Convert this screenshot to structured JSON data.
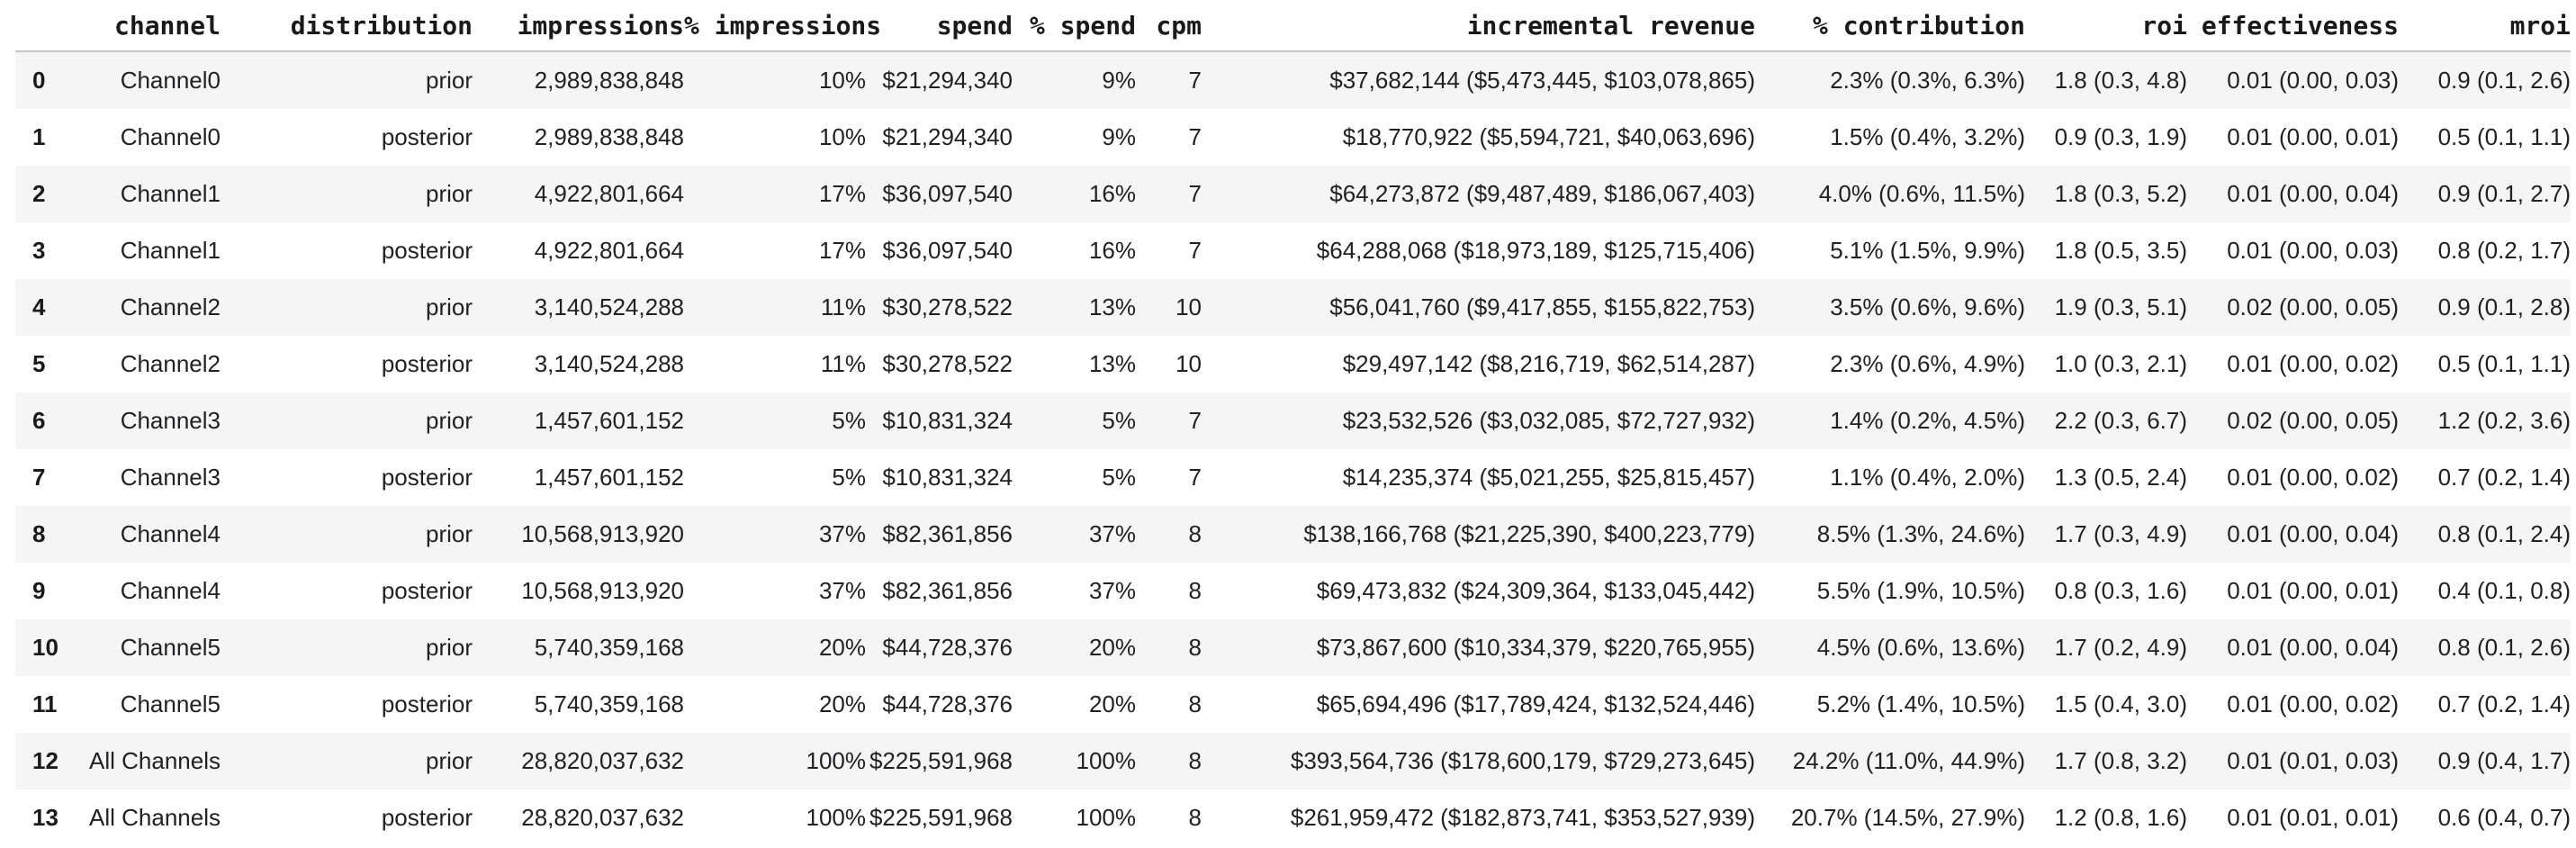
{
  "colors": {
    "stripe_row_bg": "#f5f5f5",
    "plain_row_bg": "#ffffff",
    "header_rule": "#c6c6c6",
    "header_text": "#1a1a1a",
    "body_text": "#202124"
  },
  "chart_data": {
    "type": "table",
    "title": "",
    "layout": {
      "striped": true,
      "stripe_rows": "even indices (0,2,4,...)",
      "alignment": "right",
      "index_alignment": "left",
      "gridlines": "header underline only"
    },
    "columns": [
      "",
      "channel",
      "distribution",
      "impressions",
      "% impressions",
      "spend",
      "% spend",
      "cpm",
      "incremental revenue",
      "% contribution",
      "roi",
      "effectiveness",
      "mroi"
    ],
    "rows": [
      [
        "0",
        "Channel0",
        "prior",
        "2,989,838,848",
        "10%",
        "$21,294,340",
        "9%",
        "7",
        "$37,682,144 ($5,473,445, $103,078,865)",
        "2.3% (0.3%, 6.3%)",
        "1.8 (0.3, 4.8)",
        "0.01 (0.00, 0.03)",
        "0.9 (0.1, 2.6)"
      ],
      [
        "1",
        "Channel0",
        "posterior",
        "2,989,838,848",
        "10%",
        "$21,294,340",
        "9%",
        "7",
        "$18,770,922 ($5,594,721, $40,063,696)",
        "1.5% (0.4%, 3.2%)",
        "0.9 (0.3, 1.9)",
        "0.01 (0.00, 0.01)",
        "0.5 (0.1, 1.1)"
      ],
      [
        "2",
        "Channel1",
        "prior",
        "4,922,801,664",
        "17%",
        "$36,097,540",
        "16%",
        "7",
        "$64,273,872 ($9,487,489, $186,067,403)",
        "4.0% (0.6%, 11.5%)",
        "1.8 (0.3, 5.2)",
        "0.01 (0.00, 0.04)",
        "0.9 (0.1, 2.7)"
      ],
      [
        "3",
        "Channel1",
        "posterior",
        "4,922,801,664",
        "17%",
        "$36,097,540",
        "16%",
        "7",
        "$64,288,068 ($18,973,189, $125,715,406)",
        "5.1% (1.5%, 9.9%)",
        "1.8 (0.5, 3.5)",
        "0.01 (0.00, 0.03)",
        "0.8 (0.2, 1.7)"
      ],
      [
        "4",
        "Channel2",
        "prior",
        "3,140,524,288",
        "11%",
        "$30,278,522",
        "13%",
        "10",
        "$56,041,760 ($9,417,855, $155,822,753)",
        "3.5% (0.6%, 9.6%)",
        "1.9 (0.3, 5.1)",
        "0.02 (0.00, 0.05)",
        "0.9 (0.1, 2.8)"
      ],
      [
        "5",
        "Channel2",
        "posterior",
        "3,140,524,288",
        "11%",
        "$30,278,522",
        "13%",
        "10",
        "$29,497,142 ($8,216,719, $62,514,287)",
        "2.3% (0.6%, 4.9%)",
        "1.0 (0.3, 2.1)",
        "0.01 (0.00, 0.02)",
        "0.5 (0.1, 1.1)"
      ],
      [
        "6",
        "Channel3",
        "prior",
        "1,457,601,152",
        "5%",
        "$10,831,324",
        "5%",
        "7",
        "$23,532,526 ($3,032,085, $72,727,932)",
        "1.4% (0.2%, 4.5%)",
        "2.2 (0.3, 6.7)",
        "0.02 (0.00, 0.05)",
        "1.2 (0.2, 3.6)"
      ],
      [
        "7",
        "Channel3",
        "posterior",
        "1,457,601,152",
        "5%",
        "$10,831,324",
        "5%",
        "7",
        "$14,235,374 ($5,021,255, $25,815,457)",
        "1.1% (0.4%, 2.0%)",
        "1.3 (0.5, 2.4)",
        "0.01 (0.00, 0.02)",
        "0.7 (0.2, 1.4)"
      ],
      [
        "8",
        "Channel4",
        "prior",
        "10,568,913,920",
        "37%",
        "$82,361,856",
        "37%",
        "8",
        "$138,166,768 ($21,225,390, $400,223,779)",
        "8.5% (1.3%, 24.6%)",
        "1.7 (0.3, 4.9)",
        "0.01 (0.00, 0.04)",
        "0.8 (0.1, 2.4)"
      ],
      [
        "9",
        "Channel4",
        "posterior",
        "10,568,913,920",
        "37%",
        "$82,361,856",
        "37%",
        "8",
        "$69,473,832 ($24,309,364, $133,045,442)",
        "5.5% (1.9%, 10.5%)",
        "0.8 (0.3, 1.6)",
        "0.01 (0.00, 0.01)",
        "0.4 (0.1, 0.8)"
      ],
      [
        "10",
        "Channel5",
        "prior",
        "5,740,359,168",
        "20%",
        "$44,728,376",
        "20%",
        "8",
        "$73,867,600 ($10,334,379, $220,765,955)",
        "4.5% (0.6%, 13.6%)",
        "1.7 (0.2, 4.9)",
        "0.01 (0.00, 0.04)",
        "0.8 (0.1, 2.6)"
      ],
      [
        "11",
        "Channel5",
        "posterior",
        "5,740,359,168",
        "20%",
        "$44,728,376",
        "20%",
        "8",
        "$65,694,496 ($17,789,424, $132,524,446)",
        "5.2% (1.4%, 10.5%)",
        "1.5 (0.4, 3.0)",
        "0.01 (0.00, 0.02)",
        "0.7 (0.2, 1.4)"
      ],
      [
        "12",
        "All Channels",
        "prior",
        "28,820,037,632",
        "100%",
        "$225,591,968",
        "100%",
        "8",
        "$393,564,736 ($178,600,179, $729,273,645)",
        "24.2% (11.0%, 44.9%)",
        "1.7 (0.8, 3.2)",
        "0.01 (0.01, 0.03)",
        "0.9 (0.4, 1.7)"
      ],
      [
        "13",
        "All Channels",
        "posterior",
        "28,820,037,632",
        "100%",
        "$225,591,968",
        "100%",
        "8",
        "$261,959,472 ($182,873,741, $353,527,939)",
        "20.7% (14.5%, 27.9%)",
        "1.2 (0.8, 1.6)",
        "0.01 (0.01, 0.01)",
        "0.6 (0.4, 0.7)"
      ]
    ]
  }
}
